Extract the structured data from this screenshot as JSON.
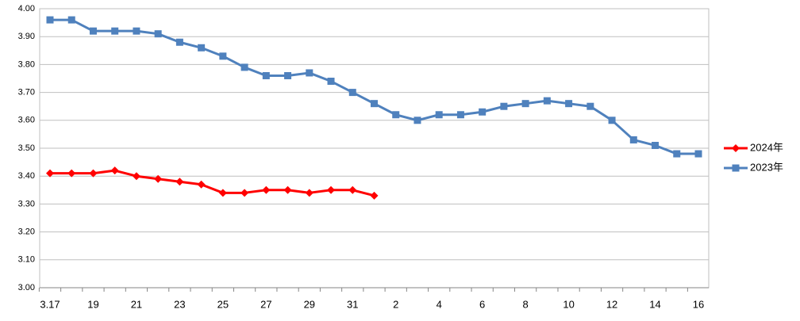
{
  "chart_data": {
    "type": "line",
    "categories": [
      "3.17",
      null,
      "19",
      null,
      "21",
      null,
      "23",
      null,
      "25",
      null,
      "27",
      null,
      "29",
      null,
      "31",
      null,
      "2",
      null,
      "4",
      null,
      "6",
      null,
      "8",
      null,
      "10",
      null,
      "12",
      null,
      "14",
      null,
      "16"
    ],
    "series": [
      {
        "name": "2024年",
        "color": "#ff0000",
        "marker": "diamond",
        "values": [
          3.41,
          3.41,
          3.41,
          3.42,
          3.4,
          3.39,
          3.38,
          3.37,
          3.34,
          3.34,
          3.35,
          3.35,
          3.34,
          3.35,
          3.35,
          3.33,
          null,
          null,
          null,
          null,
          null,
          null,
          null,
          null,
          null,
          null,
          null,
          null,
          null,
          null,
          null
        ]
      },
      {
        "name": "2023年",
        "color": "#4f81bd",
        "marker": "square",
        "values": [
          3.96,
          3.96,
          3.92,
          3.92,
          3.92,
          3.91,
          3.88,
          3.86,
          3.83,
          3.79,
          3.76,
          3.76,
          3.77,
          3.74,
          3.7,
          3.66,
          3.62,
          3.6,
          3.62,
          3.62,
          3.63,
          3.65,
          3.66,
          3.67,
          3.66,
          3.65,
          3.6,
          3.53,
          3.51,
          3.48,
          3.48
        ]
      }
    ],
    "ylim": [
      3.0,
      4.0
    ],
    "yticks": [
      {
        "value": 3.0,
        "label": "3.00"
      },
      {
        "value": 3.1,
        "label": "3.10"
      },
      {
        "value": 3.2,
        "label": "3.20"
      },
      {
        "value": 3.3,
        "label": "3.30"
      },
      {
        "value": 3.4,
        "label": "3.40"
      },
      {
        "value": 3.5,
        "label": "3.50"
      },
      {
        "value": 3.6,
        "label": "3.60"
      },
      {
        "value": 3.7,
        "label": "3.70"
      },
      {
        "value": 3.8,
        "label": "3.80"
      },
      {
        "value": 3.9,
        "label": "3.90"
      },
      {
        "value": 4.0,
        "label": "4.00"
      }
    ],
    "grid": true,
    "legend": "right"
  }
}
